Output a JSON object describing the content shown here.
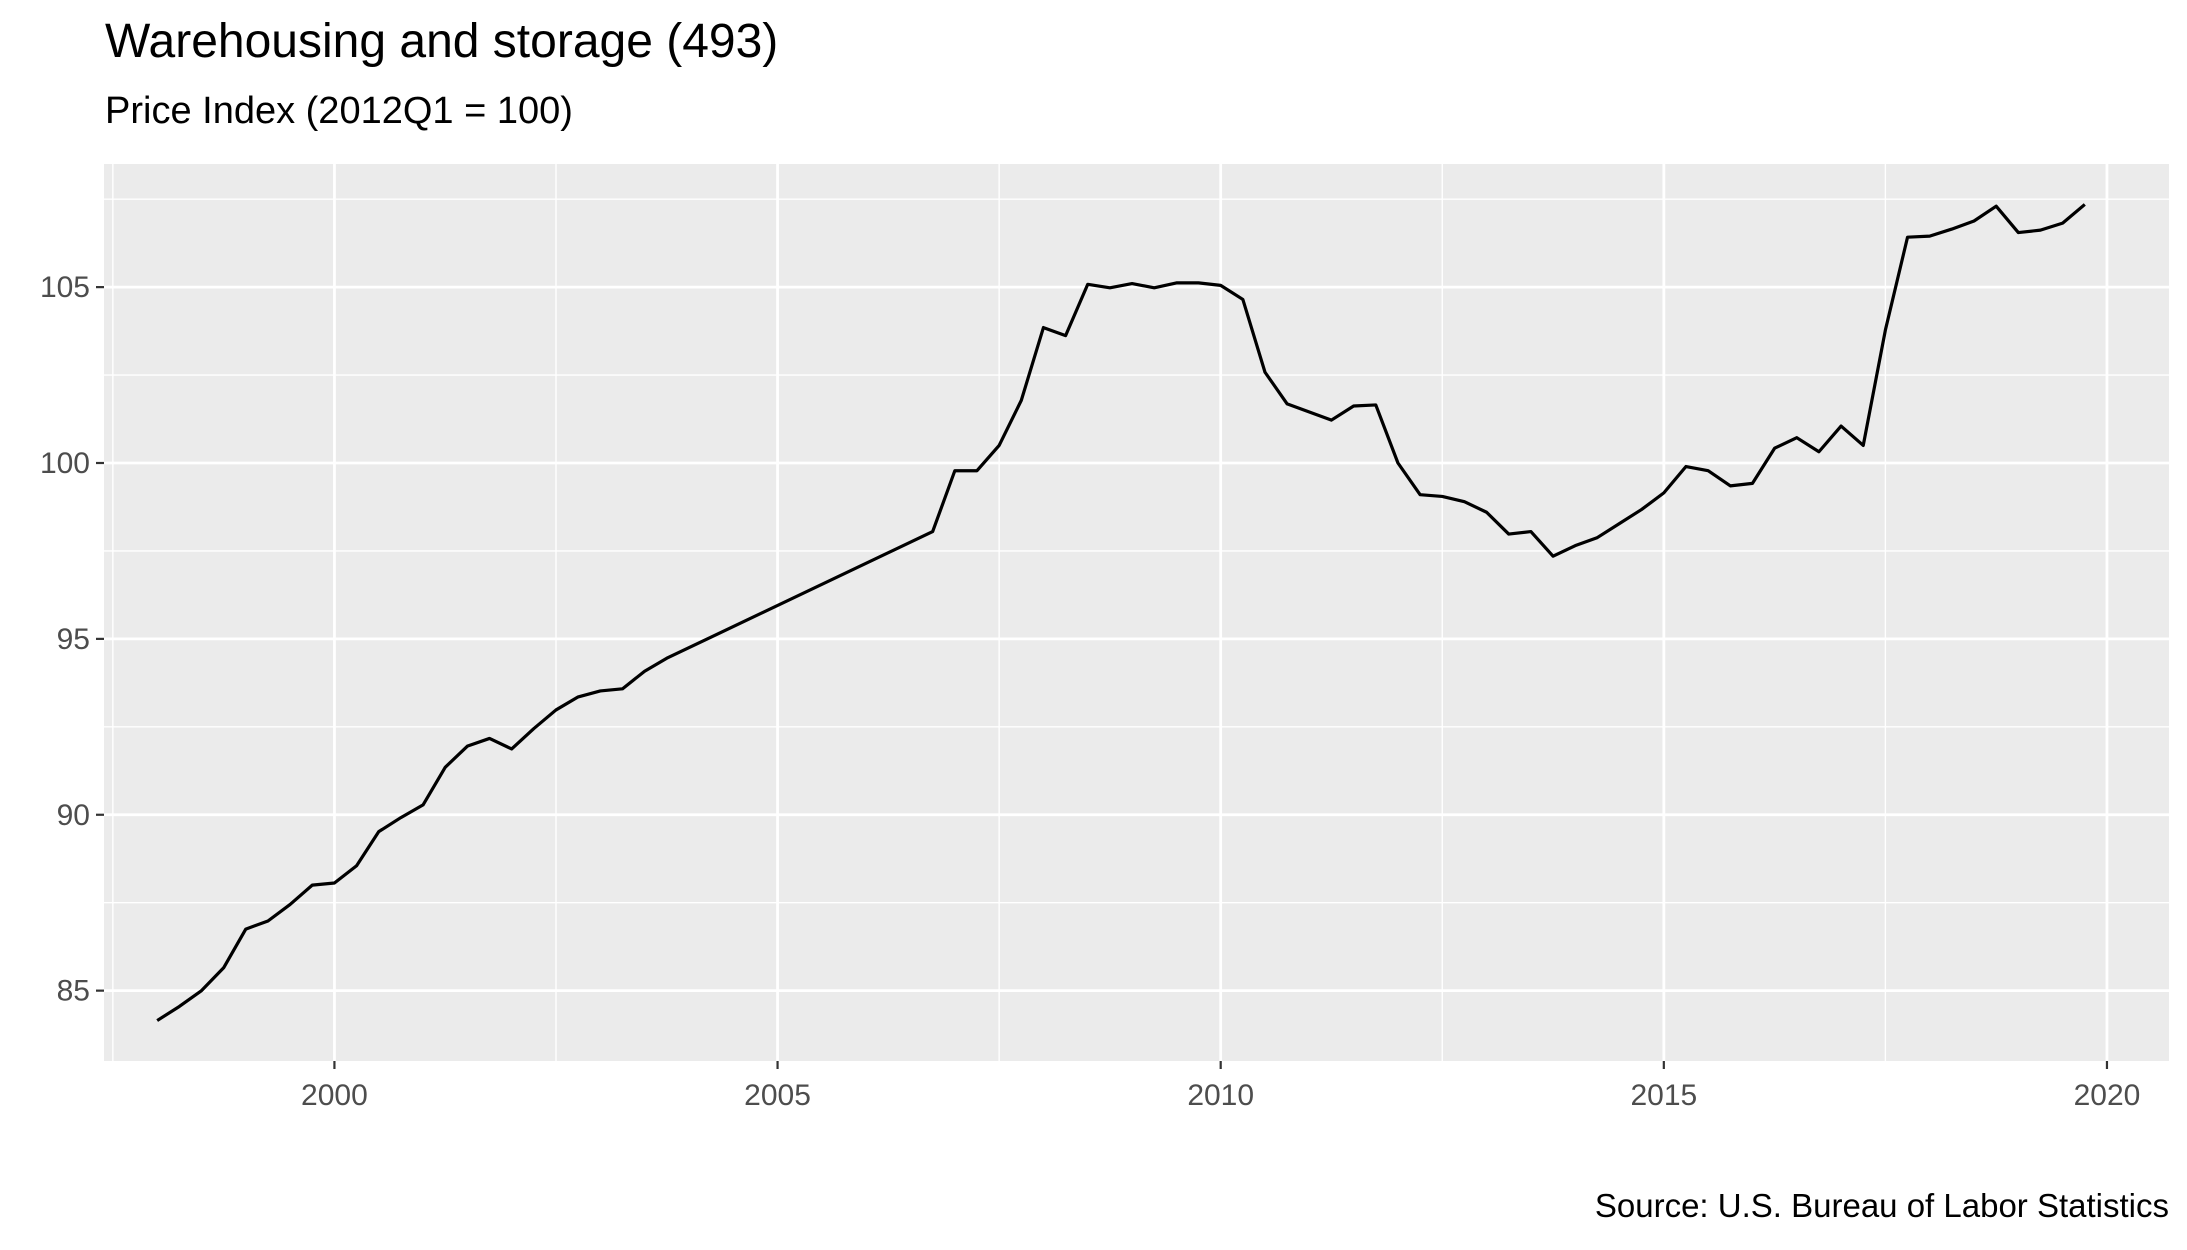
{
  "title": "Warehousing and storage (493)",
  "subtitle": "Price Index (2012Q1 = 100)",
  "caption": "Source: U.S. Bureau of Labor Statistics",
  "colors": {
    "panel": "#ebebeb",
    "grid": "#ffffff",
    "line": "#000000",
    "tick_text": "#4d4d4d"
  },
  "chart_data": {
    "type": "line",
    "xlabel": "",
    "ylabel": "",
    "xlim": [
      1997.4,
      2020.7
    ],
    "ylim": [
      83.0,
      108.5
    ],
    "x_ticks": [
      2000,
      2005,
      2010,
      2015,
      2020
    ],
    "x_tick_labels": [
      "2000",
      "2005",
      "2010",
      "2015",
      "2020"
    ],
    "y_ticks": [
      85,
      90,
      95,
      100,
      105
    ],
    "y_tick_labels": [
      "85",
      "90",
      "95",
      "100",
      "105"
    ],
    "grid": true,
    "legend": "none",
    "series": [
      {
        "x": [
          1998.0,
          1998.25,
          1998.5,
          1998.75,
          1999.0,
          1999.25,
          1999.5,
          1999.75,
          2000.0,
          2000.25,
          2000.5,
          2000.75,
          2001.0,
          2001.25,
          2001.5,
          2001.75,
          2002.0,
          2002.25,
          2002.5,
          2002.75,
          2003.0,
          2003.25,
          2003.5,
          2003.75,
          2006.75,
          2007.0,
          2007.25,
          2007.5,
          2007.75,
          2008.0,
          2008.25,
          2008.5,
          2008.75,
          2009.0,
          2009.25,
          2009.5,
          2009.75,
          2010.0,
          2010.25,
          2010.5,
          2010.75,
          2011.0,
          2011.25,
          2011.5,
          2011.75,
          2012.0,
          2012.25,
          2012.5,
          2012.75,
          2013.0,
          2013.25,
          2013.5,
          2013.75,
          2014.0,
          2014.25,
          2014.5,
          2014.75,
          2015.0,
          2015.25,
          2015.5,
          2015.75,
          2016.0,
          2016.25,
          2016.5,
          2016.75,
          2017.0,
          2017.25,
          2017.5,
          2017.75,
          2018.0,
          2018.25,
          2018.5,
          2018.75,
          2019.0,
          2019.25,
          2019.5,
          2019.75
        ],
        "y": [
          84.15,
          84.55,
          85.0,
          85.65,
          86.75,
          86.98,
          87.45,
          88.0,
          88.06,
          88.55,
          89.52,
          89.92,
          90.28,
          91.35,
          91.95,
          92.17,
          91.87,
          92.45,
          92.98,
          93.35,
          93.52,
          93.58,
          94.08,
          94.45,
          98.05,
          99.78,
          99.78,
          100.5,
          101.78,
          103.85,
          103.62,
          105.08,
          104.98,
          105.1,
          104.98,
          105.12,
          105.12,
          105.05,
          104.65,
          102.58,
          101.68,
          101.45,
          101.22,
          101.62,
          101.65,
          100.0,
          99.1,
          99.05,
          98.9,
          98.6,
          97.98,
          98.05,
          97.35,
          97.65,
          97.88,
          98.28,
          98.68,
          99.15,
          99.9,
          99.78,
          99.35,
          99.42,
          100.42,
          100.72,
          100.32,
          101.05,
          100.5,
          103.78,
          106.42,
          106.45,
          106.65,
          106.88,
          107.3,
          106.55,
          106.62,
          106.82,
          107.35
        ]
      }
    ]
  }
}
